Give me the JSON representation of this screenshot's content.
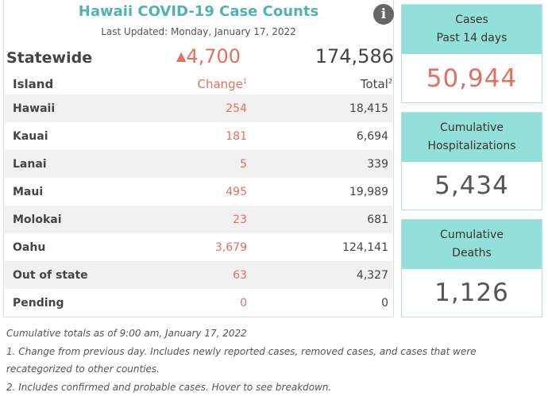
{
  "header": {
    "title": "Hawaii COVID-19 Case Counts",
    "updated": "Last Updated: Monday, January 17, 2022",
    "info_icon": "info-icon"
  },
  "statewide": {
    "label": "Statewide",
    "change": "4,700",
    "total": "174,586"
  },
  "columns": {
    "island": "Island",
    "change": "Change",
    "change_note": "1",
    "total": "Total",
    "total_note": "2"
  },
  "rows": [
    {
      "island": "Hawaii",
      "change": "254",
      "total": "18,415"
    },
    {
      "island": "Kauai",
      "change": "181",
      "total": "6,694"
    },
    {
      "island": "Lanai",
      "change": "5",
      "total": "339"
    },
    {
      "island": "Maui",
      "change": "495",
      "total": "19,989"
    },
    {
      "island": "Molokai",
      "change": "23",
      "total": "681"
    },
    {
      "island": "Oahu",
      "change": "3,679",
      "total": "124,141"
    },
    {
      "island": "Out of state",
      "change": "63",
      "total": "4,327"
    },
    {
      "island": "Pending",
      "change": "0",
      "total": "0"
    }
  ],
  "cards": {
    "cases": {
      "line1": "Cases",
      "line2": "Past 14 days",
      "value": "50,944"
    },
    "hospitalizations": {
      "line1": "Cumulative",
      "line2": "Hospitalizations",
      "value": "5,434"
    },
    "deaths": {
      "line1": "Cumulative",
      "line2": "Deaths",
      "value": "1,126"
    }
  },
  "notes": [
    "Cumulative totals as of 9:00 am, January 17, 2022",
    "1. Change from previous day. Includes newly reported cases, removed cases, and cases that were",
    "recategorized to other counties.",
    "2. Includes confirmed and probable cases. Hover to see breakdown."
  ],
  "colors": {
    "accent": "#4fb3b0",
    "change": "#e07060",
    "card_header": "#93e0da"
  }
}
